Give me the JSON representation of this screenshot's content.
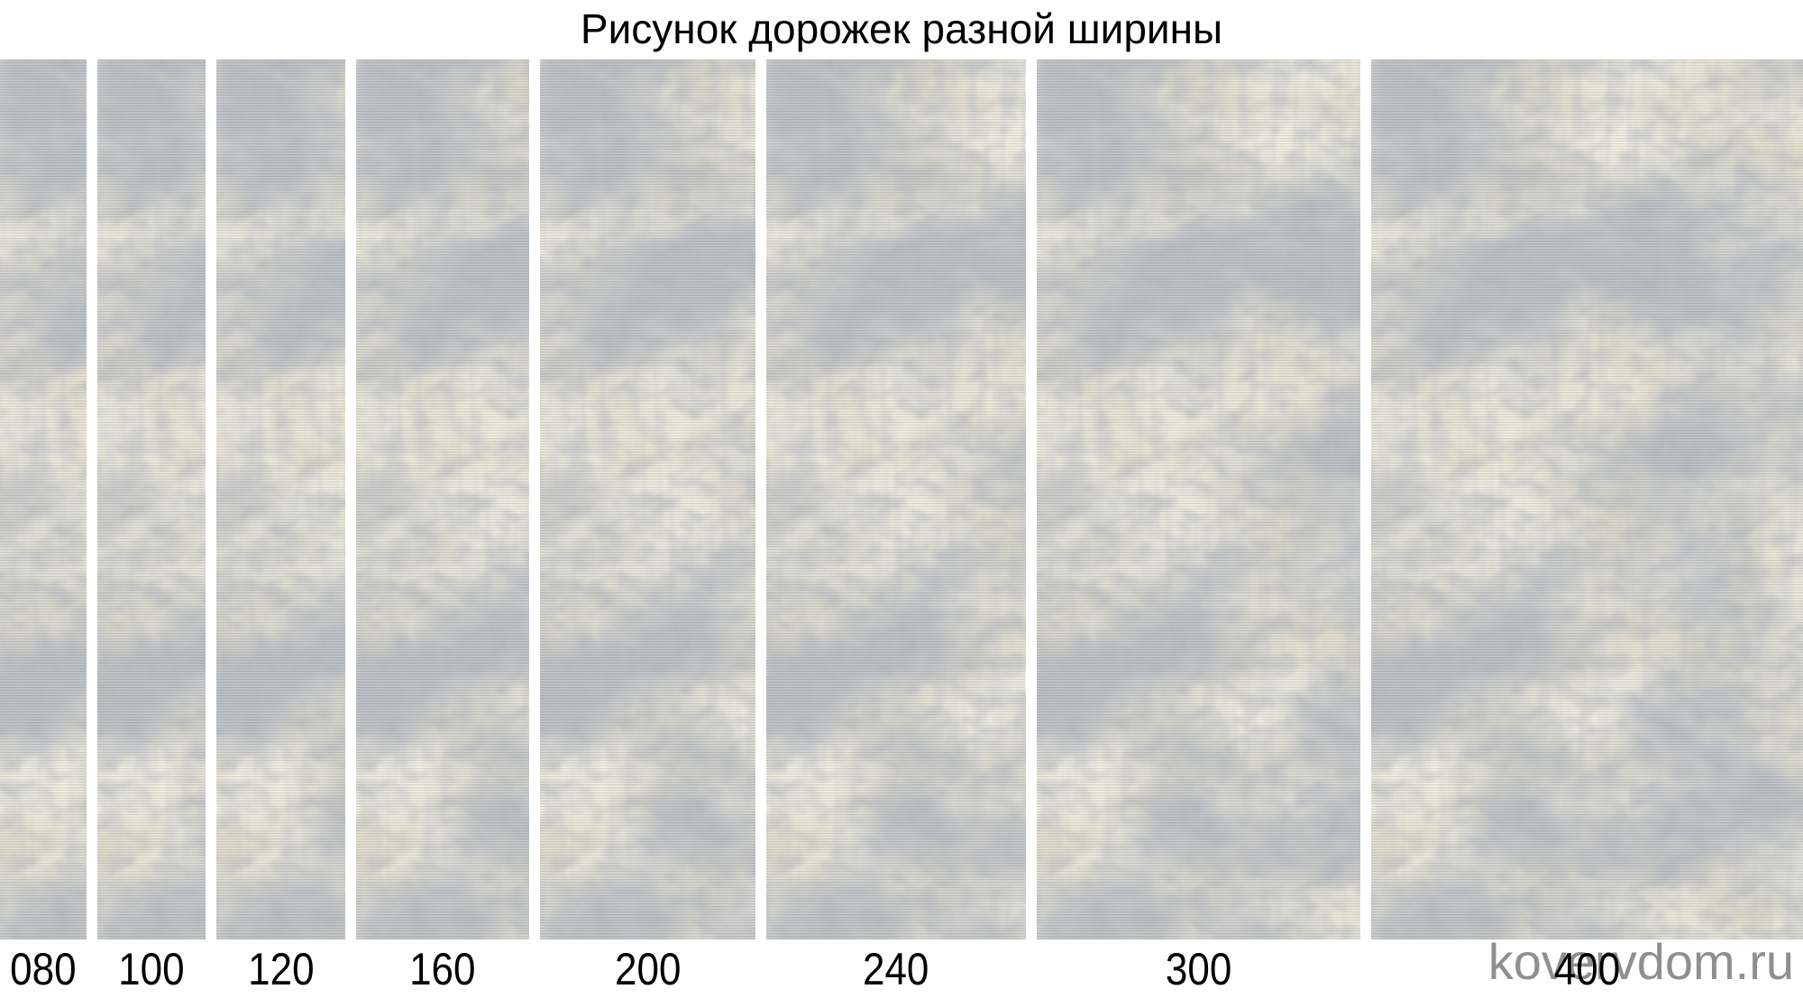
{
  "title": "Рисунок дорожек разной ширины",
  "watermark": "kovervdom.ru",
  "strips": [
    {
      "label": "080",
      "width_cm": 80
    },
    {
      "label": "100",
      "width_cm": 100
    },
    {
      "label": "120",
      "width_cm": 120
    },
    {
      "label": "160",
      "width_cm": 160
    },
    {
      "label": "200",
      "width_cm": 200
    },
    {
      "label": "240",
      "width_cm": 240
    },
    {
      "label": "300",
      "width_cm": 300
    },
    {
      "label": "400",
      "width_cm": 400
    }
  ],
  "colors": {
    "title_text": "#000000",
    "label_text": "#000000",
    "watermark_text": "#8f8f8f",
    "carpet_base": "#ece9dc",
    "carpet_gray": "#a7adba",
    "carpet_cream": "#d9d3c0"
  }
}
